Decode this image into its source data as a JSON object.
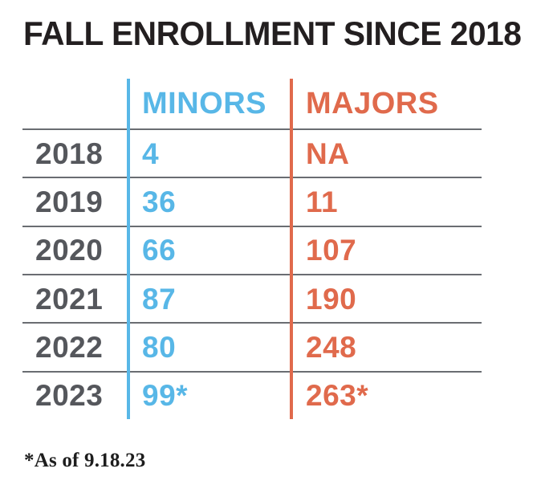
{
  "title": "FALL ENROLLMENT SINCE 2018",
  "footnote": "*As of 9.18.23",
  "table": {
    "headers": {
      "minors": "MINORS",
      "majors": "MAJORS"
    },
    "rows": [
      {
        "year": "2018",
        "minors": "4",
        "majors": "NA"
      },
      {
        "year": "2019",
        "minors": "36",
        "majors": "11"
      },
      {
        "year": "2020",
        "minors": "66",
        "majors": "107"
      },
      {
        "year": "2021",
        "minors": "87",
        "majors": "190"
      },
      {
        "year": "2022",
        "minors": "80",
        "majors": "248"
      },
      {
        "year": "2023",
        "minors": "99*",
        "majors": "263*"
      }
    ]
  },
  "colors": {
    "minors": "#58b7e7",
    "majors": "#e06a4c",
    "year": "#55575c",
    "divider": "#6a6d72",
    "title": "#231f20"
  },
  "chart_data": {
    "type": "table",
    "title": "FALL ENROLLMENT SINCE 2018",
    "categories": [
      "2018",
      "2019",
      "2020",
      "2021",
      "2022",
      "2023"
    ],
    "series": [
      {
        "name": "MINORS",
        "values": [
          4,
          36,
          66,
          87,
          80,
          99
        ]
      },
      {
        "name": "MAJORS",
        "values": [
          null,
          11,
          107,
          190,
          248,
          263
        ]
      }
    ],
    "value_notes": {
      "2018_majors": "NA",
      "2023_minors": "99*",
      "2023_majors": "263*"
    },
    "annotations": [
      "*As of 9.18.23"
    ]
  }
}
